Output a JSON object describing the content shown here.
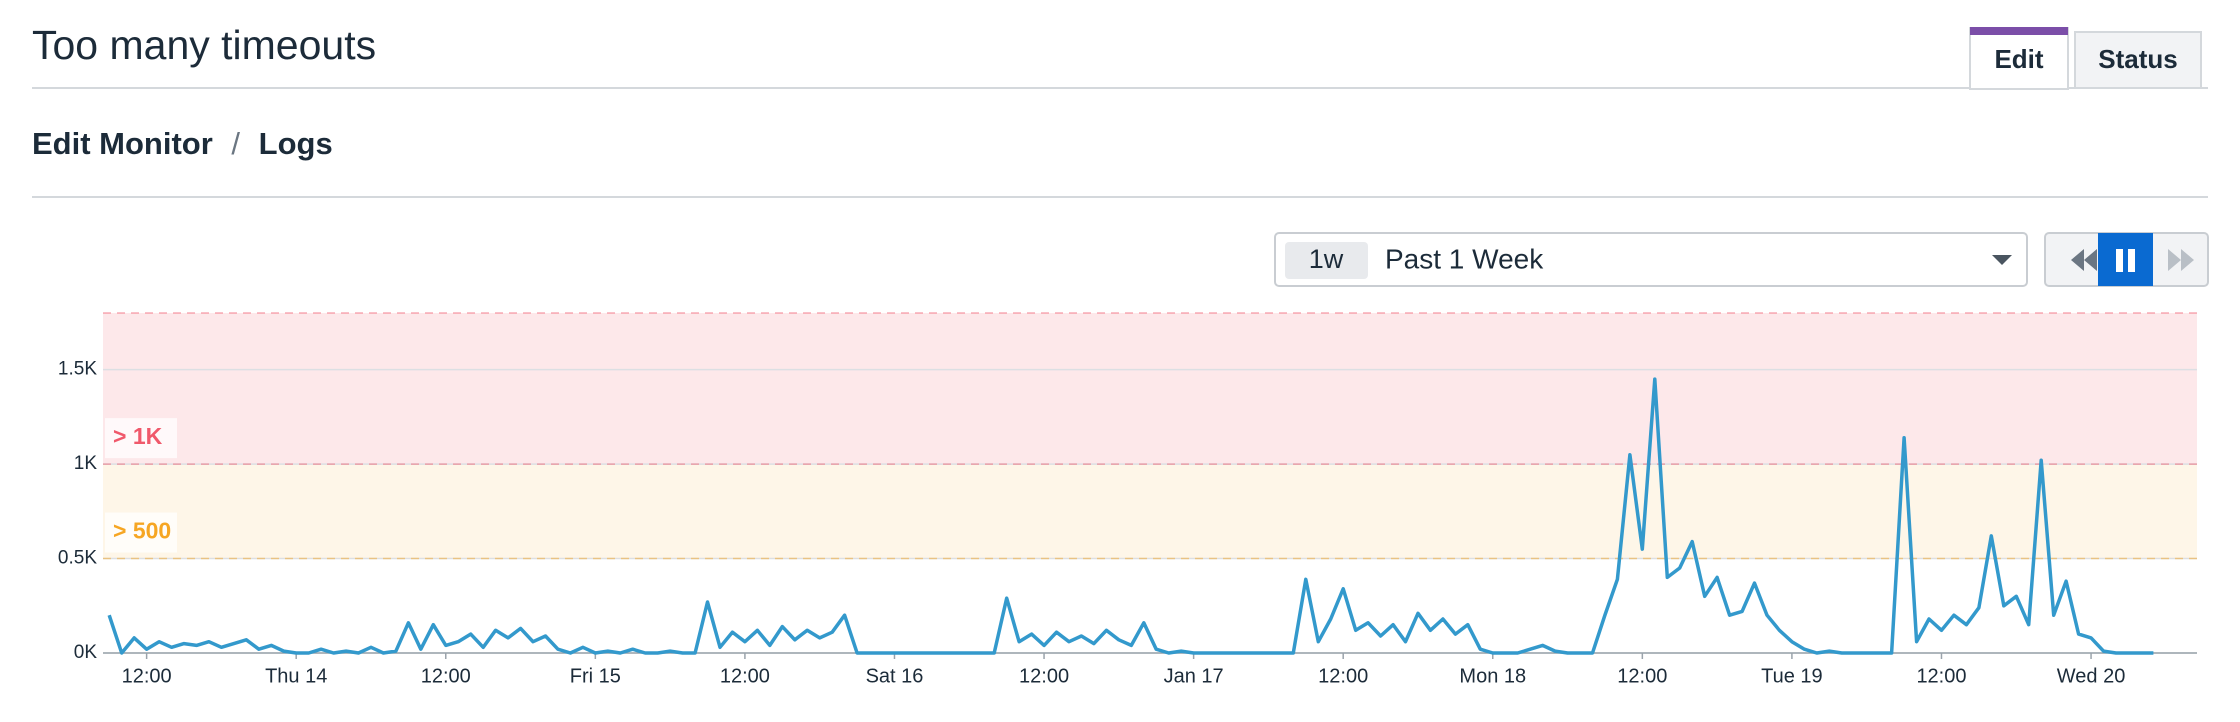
{
  "page": {
    "title": "Too many timeouts",
    "tabs": [
      "Edit",
      "Status"
    ],
    "breadcrumb": [
      "Edit Monitor",
      "/",
      "Logs"
    ],
    "time_picker": {
      "badge": "1w",
      "label": "Past 1 Week"
    }
  },
  "chart_data": {
    "type": "line",
    "color": "#3399cc",
    "categories": [
      null,
      null,
      null,
      "12:00",
      null,
      null,
      null,
      null,
      null,
      null,
      null,
      null,
      null,
      null,
      null,
      "Thu 14",
      null,
      null,
      null,
      null,
      null,
      null,
      null,
      null,
      null,
      null,
      null,
      "12:00",
      null,
      null,
      null,
      null,
      null,
      null,
      null,
      null,
      null,
      null,
      null,
      "Fri 15",
      null,
      null,
      null,
      null,
      null,
      null,
      null,
      null,
      null,
      null,
      null,
      "12:00",
      null,
      null,
      null,
      null,
      null,
      null,
      null,
      null,
      null,
      null,
      null,
      "Sat 16",
      null,
      null,
      null,
      null,
      null,
      null,
      null,
      null,
      null,
      null,
      null,
      "12:00",
      null,
      null,
      null,
      null,
      null,
      null,
      null,
      null,
      null,
      null,
      null,
      "Jan 17",
      null,
      null,
      null,
      null,
      null,
      null,
      null,
      null,
      null,
      null,
      null,
      "12:00",
      null,
      null,
      null,
      null,
      null,
      null,
      null,
      null,
      null,
      null,
      null,
      "Mon 18",
      null,
      null,
      null,
      null,
      null,
      null,
      null,
      null,
      null,
      null,
      null,
      "12:00",
      null,
      null,
      null,
      null,
      null,
      null,
      null,
      null,
      null,
      null,
      null,
      "Tue 19",
      null,
      null,
      null,
      null,
      null,
      null,
      null,
      null,
      null,
      null,
      null,
      "12:00",
      null,
      null,
      null,
      null,
      null,
      null,
      null,
      null,
      null,
      null,
      null,
      "Wed 20",
      null,
      null,
      null,
      null,
      null,
      null,
      null,
      null
    ],
    "values": [
      200,
      0,
      80,
      20,
      60,
      30,
      50,
      40,
      60,
      30,
      50,
      70,
      20,
      40,
      10,
      0,
      0,
      20,
      0,
      10,
      0,
      30,
      0,
      10,
      160,
      20,
      150,
      40,
      60,
      100,
      30,
      120,
      80,
      130,
      60,
      90,
      20,
      0,
      30,
      0,
      10,
      0,
      20,
      0,
      0,
      10,
      0,
      0,
      270,
      30,
      110,
      60,
      120,
      40,
      140,
      70,
      120,
      80,
      110,
      200,
      0,
      0,
      0,
      0,
      0,
      0,
      0,
      0,
      0,
      0,
      0,
      0,
      290,
      60,
      100,
      40,
      110,
      60,
      90,
      50,
      120,
      70,
      40,
      160,
      20,
      0,
      10,
      0,
      0,
      0,
      0,
      0,
      0,
      0,
      0,
      0,
      390,
      60,
      180,
      340,
      120,
      160,
      90,
      150,
      60,
      210,
      120,
      180,
      100,
      150,
      20,
      0,
      0,
      0,
      20,
      40,
      10,
      0,
      0,
      0,
      200,
      390,
      1050,
      550,
      1450,
      400,
      450,
      590,
      300,
      400,
      200,
      220,
      370,
      200,
      120,
      60,
      20,
      0,
      10,
      0,
      0,
      0,
      0,
      0,
      1140,
      60,
      180,
      120,
      200,
      150,
      240,
      620,
      250,
      300,
      150,
      1020,
      200,
      380,
      100,
      80,
      10,
      0,
      0,
      0,
      0,
      null,
      null,
      null
    ],
    "ylim": [
      0,
      1800
    ],
    "yticks": [
      {
        "value": 0,
        "label": "0K"
      },
      {
        "value": 500,
        "label": "0.5K"
      },
      {
        "value": 1000,
        "label": "1K"
      },
      {
        "value": 1500,
        "label": "1.5K"
      }
    ],
    "grid": true,
    "thresholds": [
      {
        "label": "> 1K",
        "value": 1000,
        "color": "#f0596b",
        "fill": "#fde8ea"
      },
      {
        "label": "> 500",
        "value": 500,
        "color": "#f6a623",
        "fill": "#fef6e8"
      }
    ]
  }
}
